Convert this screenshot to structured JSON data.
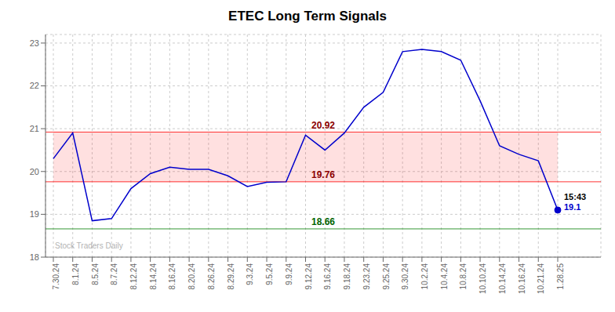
{
  "chart_data": {
    "type": "line",
    "title": "ETEC Long Term Signals",
    "categories": [
      "7.30.24",
      "8.1.24",
      "8.5.24",
      "8.7.24",
      "8.12.24",
      "8.14.24",
      "8.16.24",
      "8.20.24",
      "8.26.24",
      "8.29.24",
      "9.3.24",
      "9.5.24",
      "9.9.24",
      "9.12.24",
      "9.16.24",
      "9.18.24",
      "9.23.24",
      "9.25.24",
      "9.30.24",
      "10.2.24",
      "10.4.24",
      "10.8.24",
      "10.10.24",
      "10.14.24",
      "10.16.24",
      "10.21.24",
      "1.28.25"
    ],
    "values": [
      20.3,
      20.9,
      18.85,
      18.9,
      19.6,
      19.95,
      20.1,
      20.05,
      20.05,
      19.9,
      19.65,
      19.75,
      19.76,
      20.85,
      20.5,
      20.9,
      21.5,
      21.85,
      22.8,
      22.85,
      22.8,
      22.6,
      21.65,
      20.6,
      20.4,
      20.25,
      19.1
    ],
    "color": "#0000cc",
    "marker": "last",
    "ylim": [
      18.0,
      23.2
    ],
    "yticks": [
      18,
      19,
      20,
      21,
      22,
      23
    ],
    "grid": true,
    "reference_lines": [
      {
        "value": 20.92,
        "label": "20.92",
        "color": "red",
        "label_color": "darkred"
      },
      {
        "value": 19.76,
        "label": "19.76",
        "color": "red",
        "label_color": "darkred"
      },
      {
        "value": 18.66,
        "label": "18.66",
        "color": "green",
        "label_color": "darkgreen"
      }
    ],
    "band": {
      "from": 19.76,
      "to": 20.92,
      "color": "red"
    },
    "end_label_time": "15:43",
    "end_label_price": "19.1",
    "watermark": "Stock Traders Daily"
  }
}
